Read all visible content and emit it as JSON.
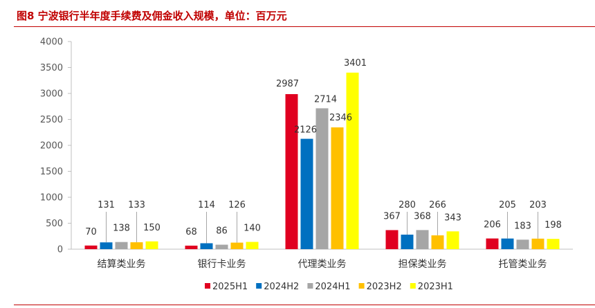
{
  "title": "图8  宁波银行半年度手续费及佣金收入规模，单位：百万元",
  "chart_data": {
    "type": "bar",
    "title": "宁波银行半年度手续费及佣金收入规模，单位：百万元",
    "categories": [
      "结算类业务",
      "银行卡业务",
      "代理类业务",
      "担保类业务",
      "托管类业务"
    ],
    "series": [
      {
        "name": "2025H1",
        "color": "#e00020",
        "values": [
          70,
          68,
          2987,
          367,
          206
        ]
      },
      {
        "name": "2024H2",
        "color": "#0070c0",
        "values": [
          131,
          114,
          2126,
          280,
          205
        ]
      },
      {
        "name": "2024H1",
        "color": "#a6a6a6",
        "values": [
          138,
          86,
          2714,
          368,
          183
        ]
      },
      {
        "name": "2023H2",
        "color": "#ffc000",
        "values": [
          133,
          126,
          2346,
          266,
          203
        ]
      },
      {
        "name": "2023H1",
        "color": "#ffff00",
        "values": [
          150,
          140,
          3401,
          343,
          198
        ]
      }
    ],
    "yticks": [
      0,
      500,
      1000,
      1500,
      2000,
      2500,
      3000,
      3500,
      4000
    ],
    "ylim": [
      0,
      4000
    ],
    "xlabel": "",
    "ylabel": "",
    "legend": "bottom"
  }
}
